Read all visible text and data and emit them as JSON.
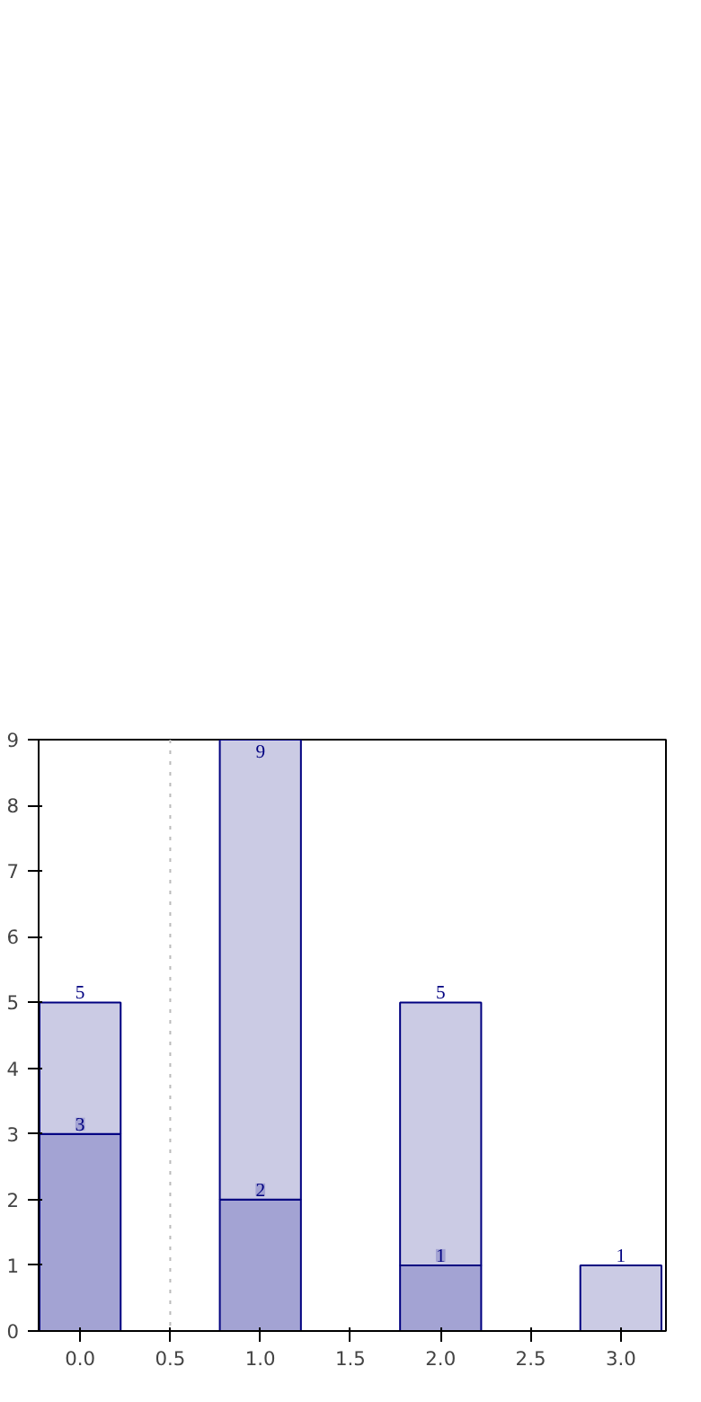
{
  "chart_data": {
    "type": "bar",
    "x": [
      0,
      1,
      2,
      3
    ],
    "stacked": true,
    "series": [
      {
        "color": "#a3a3d3",
        "values": [
          3,
          2,
          1,
          null
        ],
        "value_labels": [
          "3",
          "2",
          "1",
          null
        ]
      },
      {
        "color": "#cbcbe4",
        "values": [
          2,
          7,
          4,
          1
        ],
        "value_labels": [
          null,
          null,
          null,
          null
        ]
      }
    ],
    "totals": [
      "5",
      "9",
      "5",
      "1"
    ],
    "xlim": [
      -0.23,
      3.25
    ],
    "xticks": [
      {
        "value": 0,
        "label": "0.0"
      },
      {
        "value": 0.5,
        "label": "0.5"
      },
      {
        "value": 1,
        "label": "1.0"
      },
      {
        "value": 1.5,
        "label": "1.5"
      },
      {
        "value": 2,
        "label": "2.0"
      },
      {
        "value": 2.5,
        "label": "2.5"
      },
      {
        "value": 3,
        "label": "3.0"
      }
    ],
    "ylim": [
      0,
      9
    ],
    "yticks": [
      0,
      1,
      2,
      3,
      4,
      5,
      6,
      7,
      8,
      9
    ],
    "ref_lines": [
      {
        "axis": "x",
        "value": 0.5,
        "color": "#bbbbbb",
        "line_style": "dotted"
      }
    ],
    "grid": false
  }
}
